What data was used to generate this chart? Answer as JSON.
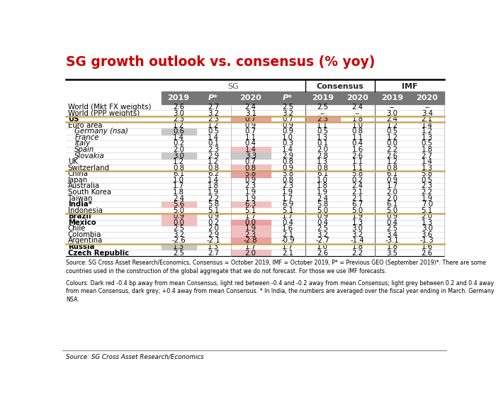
{
  "title": "SG growth outlook vs. consensus (% yoy)",
  "title_color": "#cc0000",
  "col_headers": [
    "",
    "2019",
    "P*",
    "2020",
    "P*",
    "2019",
    "2020",
    "2019",
    "2020"
  ],
  "rows": [
    {
      "country": "World (Mkt FX weights)",
      "bold": false,
      "italic": false,
      "indent": false,
      "group_sep_above": false,
      "values": [
        "2.6",
        "2.7",
        "2.4",
        "2.5",
        "2.5",
        "2.4",
        "--",
        "--"
      ]
    },
    {
      "country": "World (PPP weights)",
      "bold": false,
      "italic": false,
      "indent": false,
      "group_sep_above": false,
      "values": [
        "3.0",
        "3.2",
        "3.1",
        "3.2",
        "--",
        "--",
        "3.0",
        "3.4"
      ]
    },
    {
      "country": "US",
      "bold": true,
      "italic": false,
      "indent": false,
      "group_sep_above": true,
      "values": [
        "2.3",
        "2.3",
        "0.7",
        "0.7",
        "2.3",
        "1.8",
        "2.4",
        "2.1"
      ]
    },
    {
      "country": "Euro area",
      "bold": false,
      "italic": false,
      "indent": false,
      "group_sep_above": true,
      "values": [
        "1.2",
        "1.2",
        "0.9",
        "0.9",
        "1.1",
        "1.0",
        "1.2",
        "1.4"
      ]
    },
    {
      "country": "Germany (nsa)",
      "bold": false,
      "italic": true,
      "indent": true,
      "group_sep_above": false,
      "values": [
        "0.6",
        "0.5",
        "0.7",
        "0.9",
        "0.5",
        "0.8",
        "0.5",
        "1.2"
      ]
    },
    {
      "country": "France",
      "bold": false,
      "italic": true,
      "indent": true,
      "group_sep_above": false,
      "values": [
        "1.4",
        "1.4",
        "1.1",
        "1.0",
        "1.3",
        "1.1",
        "1.2",
        "1.3"
      ]
    },
    {
      "country": "Italy",
      "bold": false,
      "italic": true,
      "indent": true,
      "group_sep_above": false,
      "values": [
        "0.2",
        "0.1",
        "0.4",
        "0.3",
        "0.1",
        "0.4",
        "0.0",
        "0.5"
      ]
    },
    {
      "country": "Spain",
      "bold": false,
      "italic": true,
      "indent": true,
      "group_sep_above": false,
      "values": [
        "2.0",
        "2.3",
        "1.4",
        "1.4",
        "2.0",
        "1.6",
        "2.2",
        "1.8"
      ]
    },
    {
      "country": "Slovakia",
      "bold": false,
      "italic": true,
      "indent": true,
      "group_sep_above": false,
      "values": [
        "3.0",
        "2.9",
        "3.3",
        "2.9",
        "2.8",
        "2.6",
        "2.6",
        "2.7"
      ]
    },
    {
      "country": "UK",
      "bold": false,
      "italic": false,
      "indent": false,
      "group_sep_above": false,
      "values": [
        "1.2",
        "1.2",
        "0.7",
        "0.8",
        "1.3",
        "1.1",
        "1.2",
        "1.4"
      ]
    },
    {
      "country": "Switzerland",
      "bold": false,
      "italic": false,
      "indent": false,
      "group_sep_above": false,
      "values": [
        "0.8",
        "0.8",
        "0.8",
        "0.9",
        "0.8",
        "1.1",
        "0.8",
        "1.3"
      ]
    },
    {
      "country": "China",
      "bold": false,
      "italic": false,
      "indent": false,
      "group_sep_above": true,
      "values": [
        "6.1",
        "6.2",
        "5.8",
        "5.8",
        "6.1",
        "5.8",
        "6.1",
        "5.8"
      ]
    },
    {
      "country": "Japan",
      "bold": false,
      "italic": false,
      "indent": false,
      "group_sep_above": false,
      "values": [
        "1.0",
        "1.4",
        "0.9",
        "0.8",
        "1.0",
        "0.2",
        "0.9",
        "0.5"
      ]
    },
    {
      "country": "Australia",
      "bold": false,
      "italic": false,
      "indent": false,
      "group_sep_above": false,
      "values": [
        "1.7",
        "1.8",
        "2.3",
        "2.3",
        "1.8",
        "2.4",
        "1.7",
        "2.3"
      ]
    },
    {
      "country": "South Korea",
      "bold": false,
      "italic": false,
      "indent": false,
      "group_sep_above": false,
      "values": [
        "1.8",
        "1.9",
        "1.9",
        "1.9",
        "1.9",
        "2.1",
        "2.0",
        "2.2"
      ]
    },
    {
      "country": "Taiwan",
      "bold": false,
      "italic": false,
      "indent": false,
      "group_sep_above": false,
      "values": [
        "2.4",
        "2.2",
        "1.9",
        "1.7",
        "2.4",
        "2.1",
        "2.0",
        "1.9"
      ]
    },
    {
      "country": "India*",
      "bold": true,
      "italic": false,
      "indent": false,
      "group_sep_above": false,
      "values": [
        "5.6",
        "5.8",
        "6.3",
        "6.9",
        "5.8",
        "6.7",
        "6.1",
        "7.0"
      ]
    },
    {
      "country": "Indonesia",
      "bold": false,
      "italic": false,
      "indent": false,
      "group_sep_above": false,
      "values": [
        "5.0",
        "5.1",
        "5.1",
        "5.1",
        "5.0",
        "5.0",
        "5.0",
        "5.1"
      ]
    },
    {
      "country": "Brazil",
      "bold": true,
      "italic": false,
      "indent": false,
      "group_sep_above": true,
      "values": [
        "0.9",
        "0.9",
        "1.7",
        "1.7",
        "0.9",
        "1.9",
        "0.9",
        "2.0"
      ]
    },
    {
      "country": "Mexico",
      "bold": true,
      "italic": false,
      "indent": false,
      "group_sep_above": false,
      "values": [
        "0.0",
        "0.2",
        "0.0",
        "0.4",
        "0.4",
        "1.3",
        "0.4",
        "1.3"
      ]
    },
    {
      "country": "Chile",
      "bold": false,
      "italic": false,
      "indent": false,
      "group_sep_above": false,
      "values": [
        "2.5",
        "2.0",
        "1.9",
        "1.6",
        "2.5",
        "3.0",
        "2.5",
        "3.0"
      ]
    },
    {
      "country": "Colombia",
      "bold": false,
      "italic": false,
      "indent": false,
      "group_sep_above": false,
      "values": [
        "3.2",
        "2.9",
        "2.3",
        "2.1",
        "3.2",
        "3.2",
        "3.4",
        "3.6"
      ]
    },
    {
      "country": "Argentina",
      "bold": false,
      "italic": false,
      "indent": false,
      "group_sep_above": false,
      "values": [
        "-2.6",
        "-2.1",
        "-2.8",
        "-0.9",
        "-2.7",
        "-1.4",
        "-3.1",
        "-1.3"
      ]
    },
    {
      "country": "Russia",
      "bold": true,
      "italic": false,
      "indent": false,
      "group_sep_above": true,
      "values": [
        "1.3",
        "1.3",
        "1.7",
        "1.7",
        "1.0",
        "1.8",
        "1.8",
        "1.6"
      ]
    },
    {
      "country": "Czech Republic",
      "bold": true,
      "italic": false,
      "indent": false,
      "group_sep_above": false,
      "values": [
        "2.5",
        "2.7",
        "2.0",
        "2.1",
        "2.6",
        "2.2",
        "3.5",
        "2.6"
      ]
    }
  ],
  "cell_colors": {
    "2_3": "#e8a0a0",
    "2_5": "#e8a0a0",
    "4_1": "#c8c8c8",
    "7_3": "#f0c0c0",
    "8_1": "#c8c8c8",
    "8_3": "#c8c8c8",
    "10_3": "#f0c0c0",
    "11_3": "#e8a0a0",
    "16_1": "#f0c0c0",
    "16_3": "#f0c0c0",
    "18_1": "#f0c0c0",
    "19_1": "#f0c0c0",
    "19_3": "#e8a0a0",
    "20_3": "#f0c0c0",
    "21_3": "#f0c0c0",
    "22_3": "#e8a0a0",
    "23_1": "#c8c8c8",
    "24_3": "#f0c0c0"
  },
  "footer1": "Source: SG Cross Asset Research/Economics, Consensus = October 2019, IMF = October 2019, P* = Previous GEO (September 2019)*. There are some",
  "footer2": "countries used in the construction of the global aggregate that we do not forecast. For those we use IMF forecasts.",
  "footer3": "Colours: Dark red -0.4 bp away from mean Consensus, light red between -0.4 and -0.2 away from mean Consensus; light grey between 0.2 and 0.4 away",
  "footer4": "from mean Consensus, dark grey; +0.4 away from mean Consensus. * In India, the numbers are averaged over the fiscal year ending in March. Germany",
  "footer5": "NSA.",
  "footer_source": "Source: SG Cross Asset Research/Economics",
  "bg_color": "#ffffff",
  "header_bg": "#777777",
  "tan_sep_color": "#c8a860"
}
